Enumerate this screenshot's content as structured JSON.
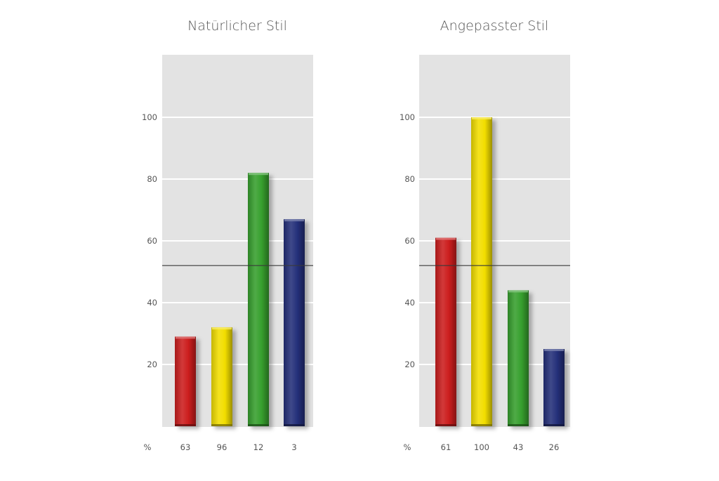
{
  "chart_data": [
    {
      "type": "bar",
      "title": "Natürlicher Stil",
      "categories": [
        "63",
        "96",
        "12",
        "3"
      ],
      "values": [
        29,
        32,
        82,
        67
      ],
      "colors": [
        "#cc1e1e",
        "#f2de00",
        "#37a02e",
        "#25307a"
      ],
      "reference_line": 52,
      "ylim": [
        0,
        120
      ],
      "yticks": [
        20,
        40,
        60,
        80,
        100
      ],
      "x_unit_label": "%",
      "grid": true
    },
    {
      "type": "bar",
      "title": "Angepasster Stil",
      "categories": [
        "61",
        "100",
        "43",
        "26"
      ],
      "values": [
        61,
        100,
        44,
        25
      ],
      "colors": [
        "#cc1e1e",
        "#f2de00",
        "#37a02e",
        "#25307a"
      ],
      "reference_line": 52,
      "ylim": [
        0,
        120
      ],
      "yticks": [
        20,
        40,
        60,
        80,
        100
      ],
      "x_unit_label": "%",
      "grid": true
    }
  ]
}
